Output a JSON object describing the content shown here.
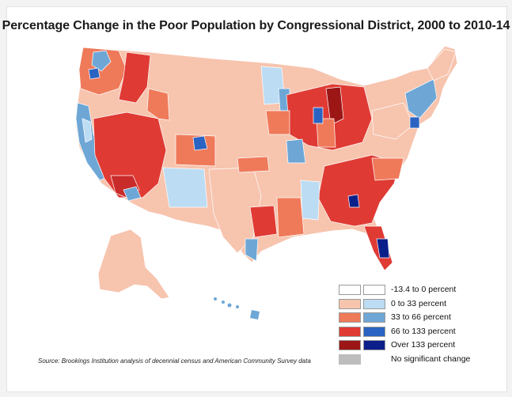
{
  "title": "Percentage Change in the Poor Population by Congressional District, 2000 to 2010-14",
  "source": "Source: Brookings Institution analysis of decennial census and American Community Survey data",
  "legend": [
    {
      "label": "-13.4 to 0 percent",
      "increase_color": "#ffffff",
      "decrease_color": "#ffffff"
    },
    {
      "label": "0 to 33 percent",
      "increase_color": "#f7c4ae",
      "decrease_color": "#bcdcf3"
    },
    {
      "label": "33 to 66 percent",
      "increase_color": "#ef7a5a",
      "decrease_color": "#6ea7d6"
    },
    {
      "label": "66 to 133 percent",
      "increase_color": "#e03a34",
      "decrease_color": "#2a63c2"
    },
    {
      "label": "Over 133 percent",
      "increase_color": "#9c1616",
      "decrease_color": "#0a1f8a"
    },
    {
      "label": "No significant change",
      "increase_color": "#bdbdbd",
      "decrease_color": null
    }
  ],
  "colors": {
    "land_base": "#f7c4ae",
    "border": "#ffffff",
    "outline": "#b06a55"
  }
}
